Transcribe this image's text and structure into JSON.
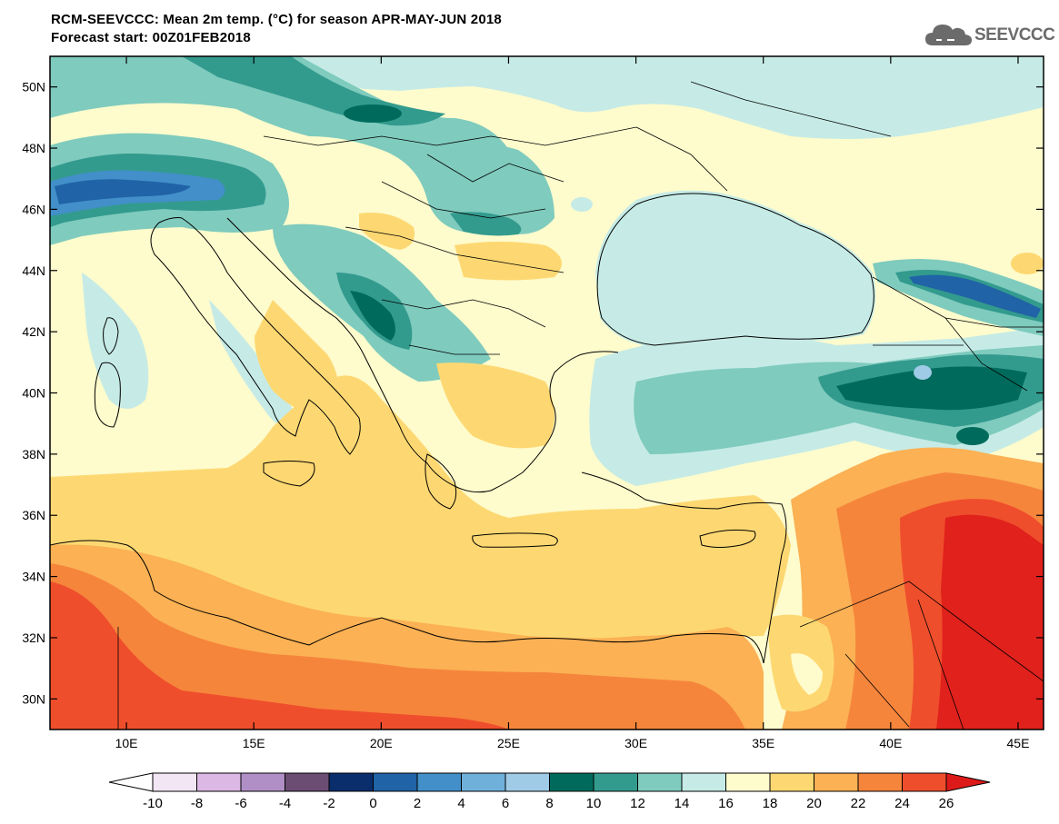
{
  "title": {
    "line1": "RCM-SEEVCCC: Mean 2m temp. (°C) for season APR-MAY-JUN 2018",
    "line2": "Forecast start: 00Z01FEB2018"
  },
  "logo": {
    "text": "SEEVCCC",
    "icon": "cloud-icon",
    "color": "#6b6b6b"
  },
  "map": {
    "lon_range": [
      7,
      46
    ],
    "lat_range": [
      29,
      51
    ],
    "lat_ticks": [
      "50N",
      "48N",
      "46N",
      "44N",
      "42N",
      "40N",
      "38N",
      "36N",
      "34N",
      "32N",
      "30N"
    ],
    "lat_values": [
      50,
      48,
      46,
      44,
      42,
      40,
      38,
      36,
      34,
      32,
      30
    ],
    "lon_ticks": [
      "10E",
      "15E",
      "20E",
      "25E",
      "30E",
      "35E",
      "40E",
      "45E"
    ],
    "lon_values": [
      10,
      15,
      20,
      25,
      30,
      35,
      40,
      45
    ]
  },
  "colorbar": {
    "labels": [
      "-10",
      "-8",
      "-6",
      "-4",
      "-2",
      "0",
      "2",
      "4",
      "6",
      "8",
      "10",
      "12",
      "14",
      "16",
      "18",
      "20",
      "22",
      "24",
      "26"
    ],
    "colors": [
      "#f3e6f4",
      "#dcb8e4",
      "#b08fc6",
      "#6b4d73",
      "#0a2d6b",
      "#2063a6",
      "#428fc9",
      "#6fb0da",
      "#9fcbe6",
      "#006b5c",
      "#339b8e",
      "#7fcbbe",
      "#c6ebe6",
      "#fefbcc",
      "#fdd872",
      "#fbb154",
      "#f6853c",
      "#ef4e2c"
    ],
    "under_color": "#ffffff",
    "over_color": "#dd1a1a"
  }
}
